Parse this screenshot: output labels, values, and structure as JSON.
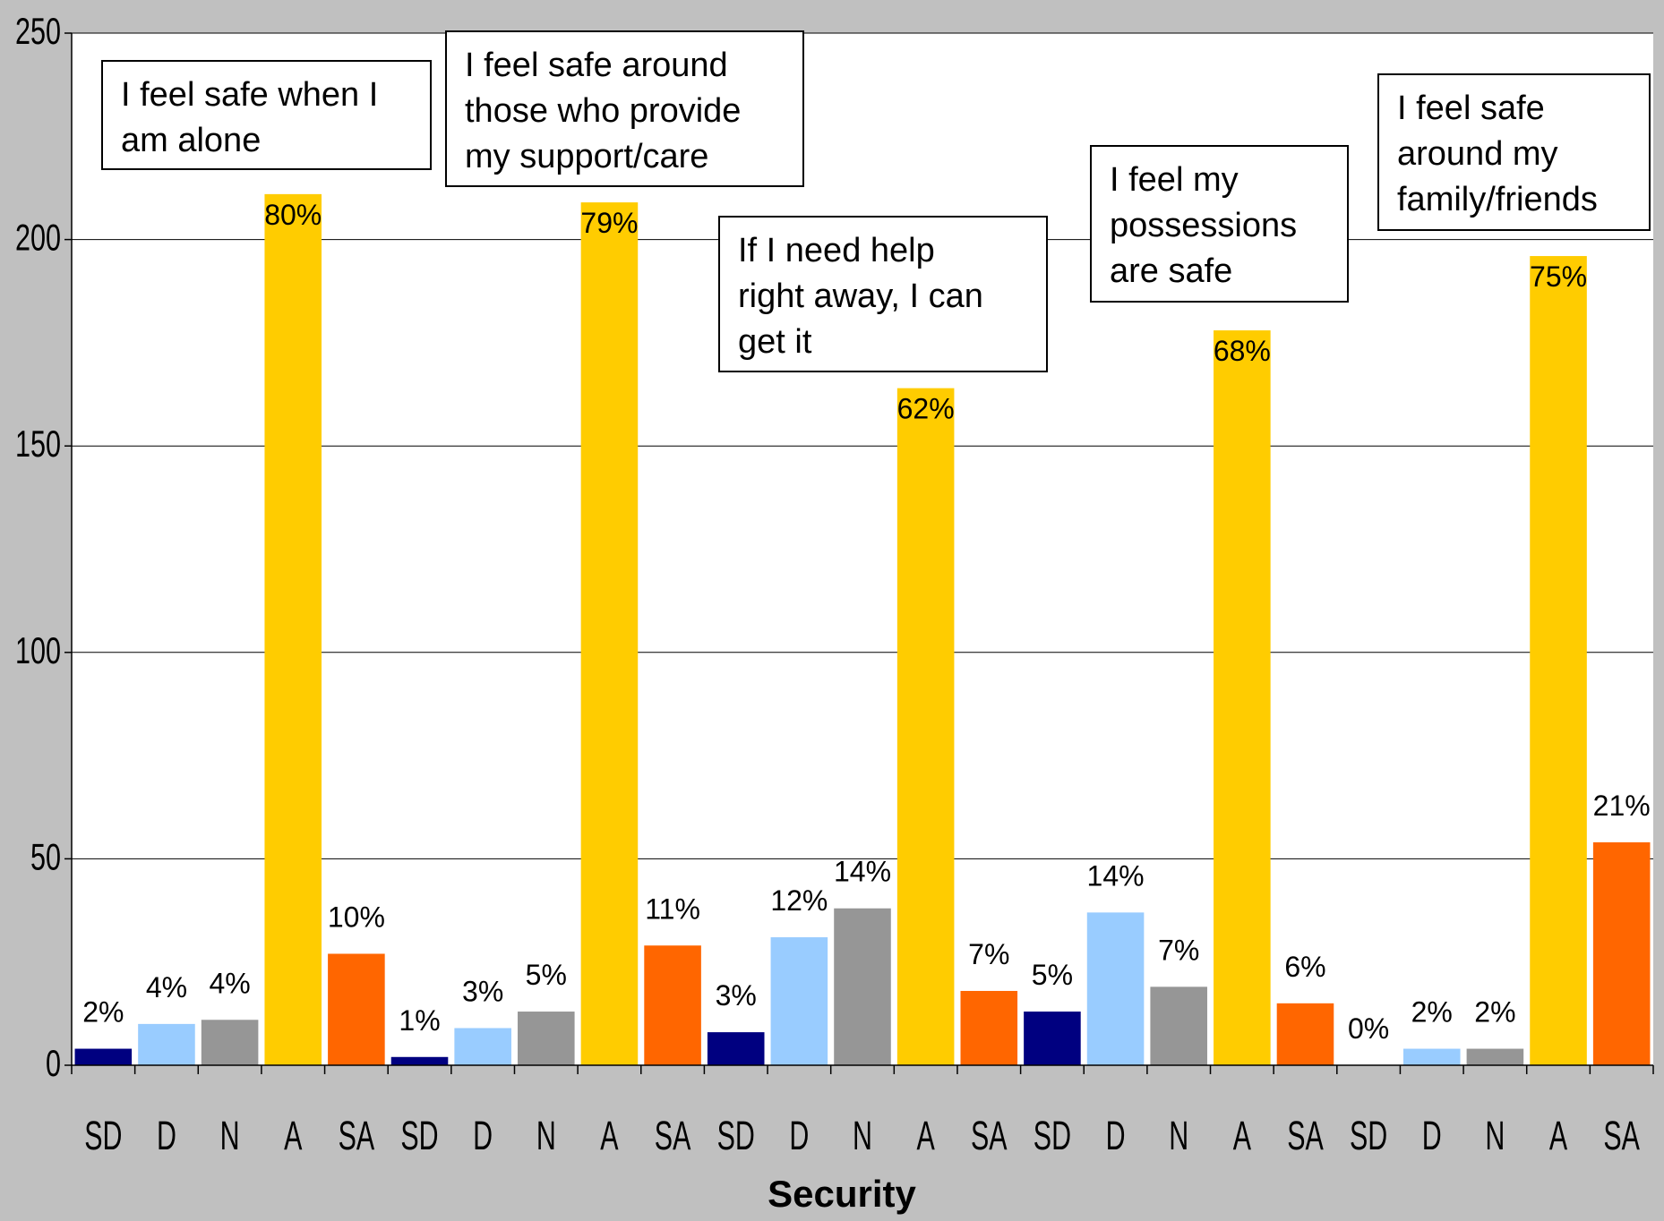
{
  "chart_data": {
    "type": "bar",
    "xlabel": "Security",
    "ylabel": "",
    "ylim": [
      0,
      250
    ],
    "yticks": [
      0,
      50,
      100,
      150,
      200,
      250
    ],
    "grid": true,
    "colors": {
      "SD": "#000080",
      "D": "#99ccff",
      "N": "#969696",
      "A": "#ffcc00",
      "SA": "#ff6600",
      "plot_background": "#ffffff",
      "chart_background": "#c0c0c0"
    },
    "categories": [
      "SD",
      "D",
      "N",
      "A",
      "SA",
      "SD",
      "D",
      "N",
      "A",
      "SA",
      "SD",
      "D",
      "N",
      "A",
      "SA",
      "SD",
      "D",
      "N",
      "A",
      "SA",
      "SD",
      "D",
      "N",
      "A",
      "SA"
    ],
    "values": [
      4,
      10,
      11,
      211,
      27,
      2,
      9,
      13,
      209,
      29,
      8,
      31,
      38,
      164,
      18,
      13,
      37,
      19,
      178,
      15,
      0,
      4,
      4,
      196,
      54
    ],
    "data_labels": [
      "2%",
      "4%",
      "4%",
      "80%",
      "10%",
      "1%",
      "3%",
      "5%",
      "79%",
      "11%",
      "3%",
      "12%",
      "14%",
      "62%",
      "7%",
      "5%",
      "14%",
      "7%",
      "68%",
      "6%",
      "0%",
      "2%",
      "2%",
      "75%",
      "21%"
    ],
    "annotations": [
      "I feel safe when I\nam alone",
      "I feel safe around\nthose who provide\nmy support/care",
      "If I need help\nright away, I can\nget it",
      "I feel my\npossessions\nare safe",
      "I feel safe\naround my\nfamily/friends"
    ]
  }
}
